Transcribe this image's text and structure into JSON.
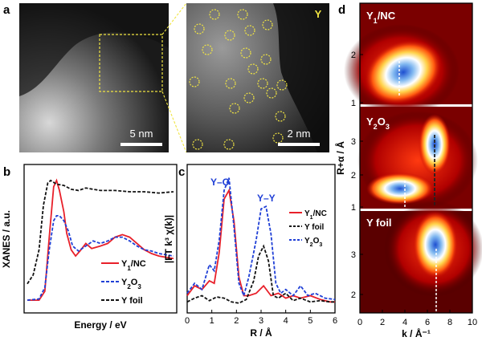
{
  "panels": {
    "a": {
      "letter": "a",
      "scalebar_left": "5 nm",
      "scalebar_right": "2 nm",
      "element_tag": "Y"
    },
    "b": {
      "letter": "b",
      "ylabel": "XANES / a.u.",
      "xlabel": "Energy / eV",
      "legend": [
        {
          "label": "Y1/NC",
          "main": "Y",
          "sub": "1",
          "rest": "/NC",
          "color": "#e8202a",
          "dash": "solid"
        },
        {
          "label": "Y2O3",
          "main": "Y",
          "sub": "2",
          "rest": "O",
          "sub2": "3",
          "color": "#1f3fd6",
          "dash": "dashed"
        },
        {
          "label": "Y foil",
          "main": "Y foil",
          "color": "#111111",
          "dash": "dashed"
        }
      ]
    },
    "c": {
      "letter": "c",
      "ylabel": "|FT k³ χ(k)|",
      "xlabel": "R / Å",
      "annot_yo": "Y–O",
      "annot_yy": "Y–Y",
      "xticks": [
        "0",
        "1",
        "2",
        "3",
        "4",
        "5",
        "6"
      ],
      "legend": [
        {
          "label": "Y1/NC",
          "color": "#e8202a",
          "dash": "solid"
        },
        {
          "label": "Y foil",
          "color": "#111111",
          "dash": "dashed"
        },
        {
          "label": "Y2O3",
          "color": "#1f3fd6",
          "dash": "dashed"
        }
      ]
    },
    "d": {
      "letter": "d",
      "ylabel": "R+α / Å",
      "xlabel": "k / Å⁻¹",
      "xticks": [
        "0",
        "2",
        "4",
        "6",
        "8",
        "10"
      ],
      "sub_titles": [
        "Y1/NC",
        "Y2O3",
        "Y foil"
      ],
      "yticks_top": [
        "1",
        "2"
      ],
      "yticks_mid": [
        "1",
        "2",
        "3"
      ],
      "yticks_bot": [
        "2",
        "3"
      ]
    }
  },
  "chart_data": [
    {
      "type": "line",
      "panel": "b",
      "title": "",
      "xlabel": "Energy / eV",
      "ylabel": "XANES / a.u.",
      "xlim": [
        0,
        1
      ],
      "ylim": [
        0,
        1.05
      ],
      "series": [
        {
          "name": "Y1/NC",
          "x": [
            0,
            0.08,
            0.12,
            0.15,
            0.18,
            0.2,
            0.22,
            0.25,
            0.27,
            0.3,
            0.33,
            0.36,
            0.4,
            0.44,
            0.5,
            0.55,
            0.6,
            0.65,
            0.7,
            0.75,
            0.8,
            0.85,
            0.9,
            1.0
          ],
          "y": [
            0.05,
            0.05,
            0.12,
            0.55,
            0.95,
            1.0,
            0.92,
            0.75,
            0.58,
            0.45,
            0.4,
            0.44,
            0.5,
            0.46,
            0.48,
            0.5,
            0.55,
            0.57,
            0.55,
            0.5,
            0.45,
            0.42,
            0.4,
            0.38
          ]
        },
        {
          "name": "Y2O3",
          "x": [
            0,
            0.08,
            0.12,
            0.15,
            0.18,
            0.2,
            0.22,
            0.25,
            0.28,
            0.31,
            0.35,
            0.4,
            0.45,
            0.5,
            0.55,
            0.6,
            0.65,
            0.7,
            0.75,
            0.8,
            0.85,
            0.9,
            1.0
          ],
          "y": [
            0.05,
            0.06,
            0.15,
            0.45,
            0.68,
            0.72,
            0.72,
            0.68,
            0.6,
            0.48,
            0.44,
            0.48,
            0.52,
            0.5,
            0.52,
            0.55,
            0.55,
            0.52,
            0.48,
            0.45,
            0.44,
            0.42,
            0.4
          ]
        },
        {
          "name": "Y foil",
          "x": [
            0,
            0.04,
            0.08,
            0.11,
            0.14,
            0.16,
            0.2,
            0.25,
            0.3,
            0.35,
            0.4,
            0.45,
            0.5,
            0.6,
            0.7,
            0.8,
            0.9,
            1.0
          ],
          "y": [
            0.18,
            0.25,
            0.45,
            0.8,
            0.98,
            1.0,
            0.97,
            0.96,
            0.93,
            0.92,
            0.94,
            0.93,
            0.92,
            0.92,
            0.91,
            0.91,
            0.9,
            0.91
          ]
        }
      ]
    },
    {
      "type": "line",
      "panel": "c",
      "title": "",
      "xlabel": "R / Å",
      "ylabel": "|FT k³ χ(k)|",
      "xlim": [
        0,
        6
      ],
      "ylim": [
        0,
        1.1
      ],
      "series": [
        {
          "name": "Y1/NC",
          "x": [
            0,
            0.3,
            0.6,
            0.9,
            1.1,
            1.3,
            1.5,
            1.7,
            1.9,
            2.1,
            2.3,
            2.5,
            2.8,
            3.1,
            3.4,
            3.7,
            4.0,
            4.3,
            4.6,
            5.0,
            5.4,
            5.8,
            6.0
          ],
          "y": [
            0.1,
            0.18,
            0.15,
            0.22,
            0.2,
            0.45,
            0.88,
            0.95,
            0.7,
            0.25,
            0.1,
            0.1,
            0.12,
            0.18,
            0.1,
            0.12,
            0.08,
            0.1,
            0.08,
            0.1,
            0.07,
            0.05,
            0.05
          ]
        },
        {
          "name": "Y foil",
          "x": [
            0,
            0.3,
            0.6,
            0.9,
            1.2,
            1.5,
            1.8,
            2.1,
            2.4,
            2.7,
            2.9,
            3.1,
            3.3,
            3.5,
            3.7,
            4.0,
            4.3,
            4.6,
            5.0,
            5.4,
            5.8,
            6.0
          ],
          "y": [
            0.05,
            0.08,
            0.1,
            0.06,
            0.09,
            0.08,
            0.05,
            0.04,
            0.07,
            0.22,
            0.42,
            0.5,
            0.38,
            0.1,
            0.08,
            0.12,
            0.06,
            0.08,
            0.05,
            0.06,
            0.05,
            0.05
          ]
        },
        {
          "name": "Y2O3",
          "x": [
            0,
            0.3,
            0.6,
            0.9,
            1.1,
            1.3,
            1.5,
            1.7,
            1.9,
            2.1,
            2.3,
            2.5,
            2.8,
            3.0,
            3.2,
            3.4,
            3.6,
            3.8,
            4.0,
            4.3,
            4.6,
            4.9,
            5.2,
            5.6,
            6.0
          ],
          "y": [
            0.12,
            0.2,
            0.15,
            0.35,
            0.3,
            0.55,
            0.95,
            1.05,
            0.65,
            0.2,
            0.1,
            0.25,
            0.55,
            0.8,
            0.82,
            0.6,
            0.2,
            0.12,
            0.15,
            0.1,
            0.18,
            0.1,
            0.12,
            0.08,
            0.07
          ]
        }
      ]
    }
  ]
}
